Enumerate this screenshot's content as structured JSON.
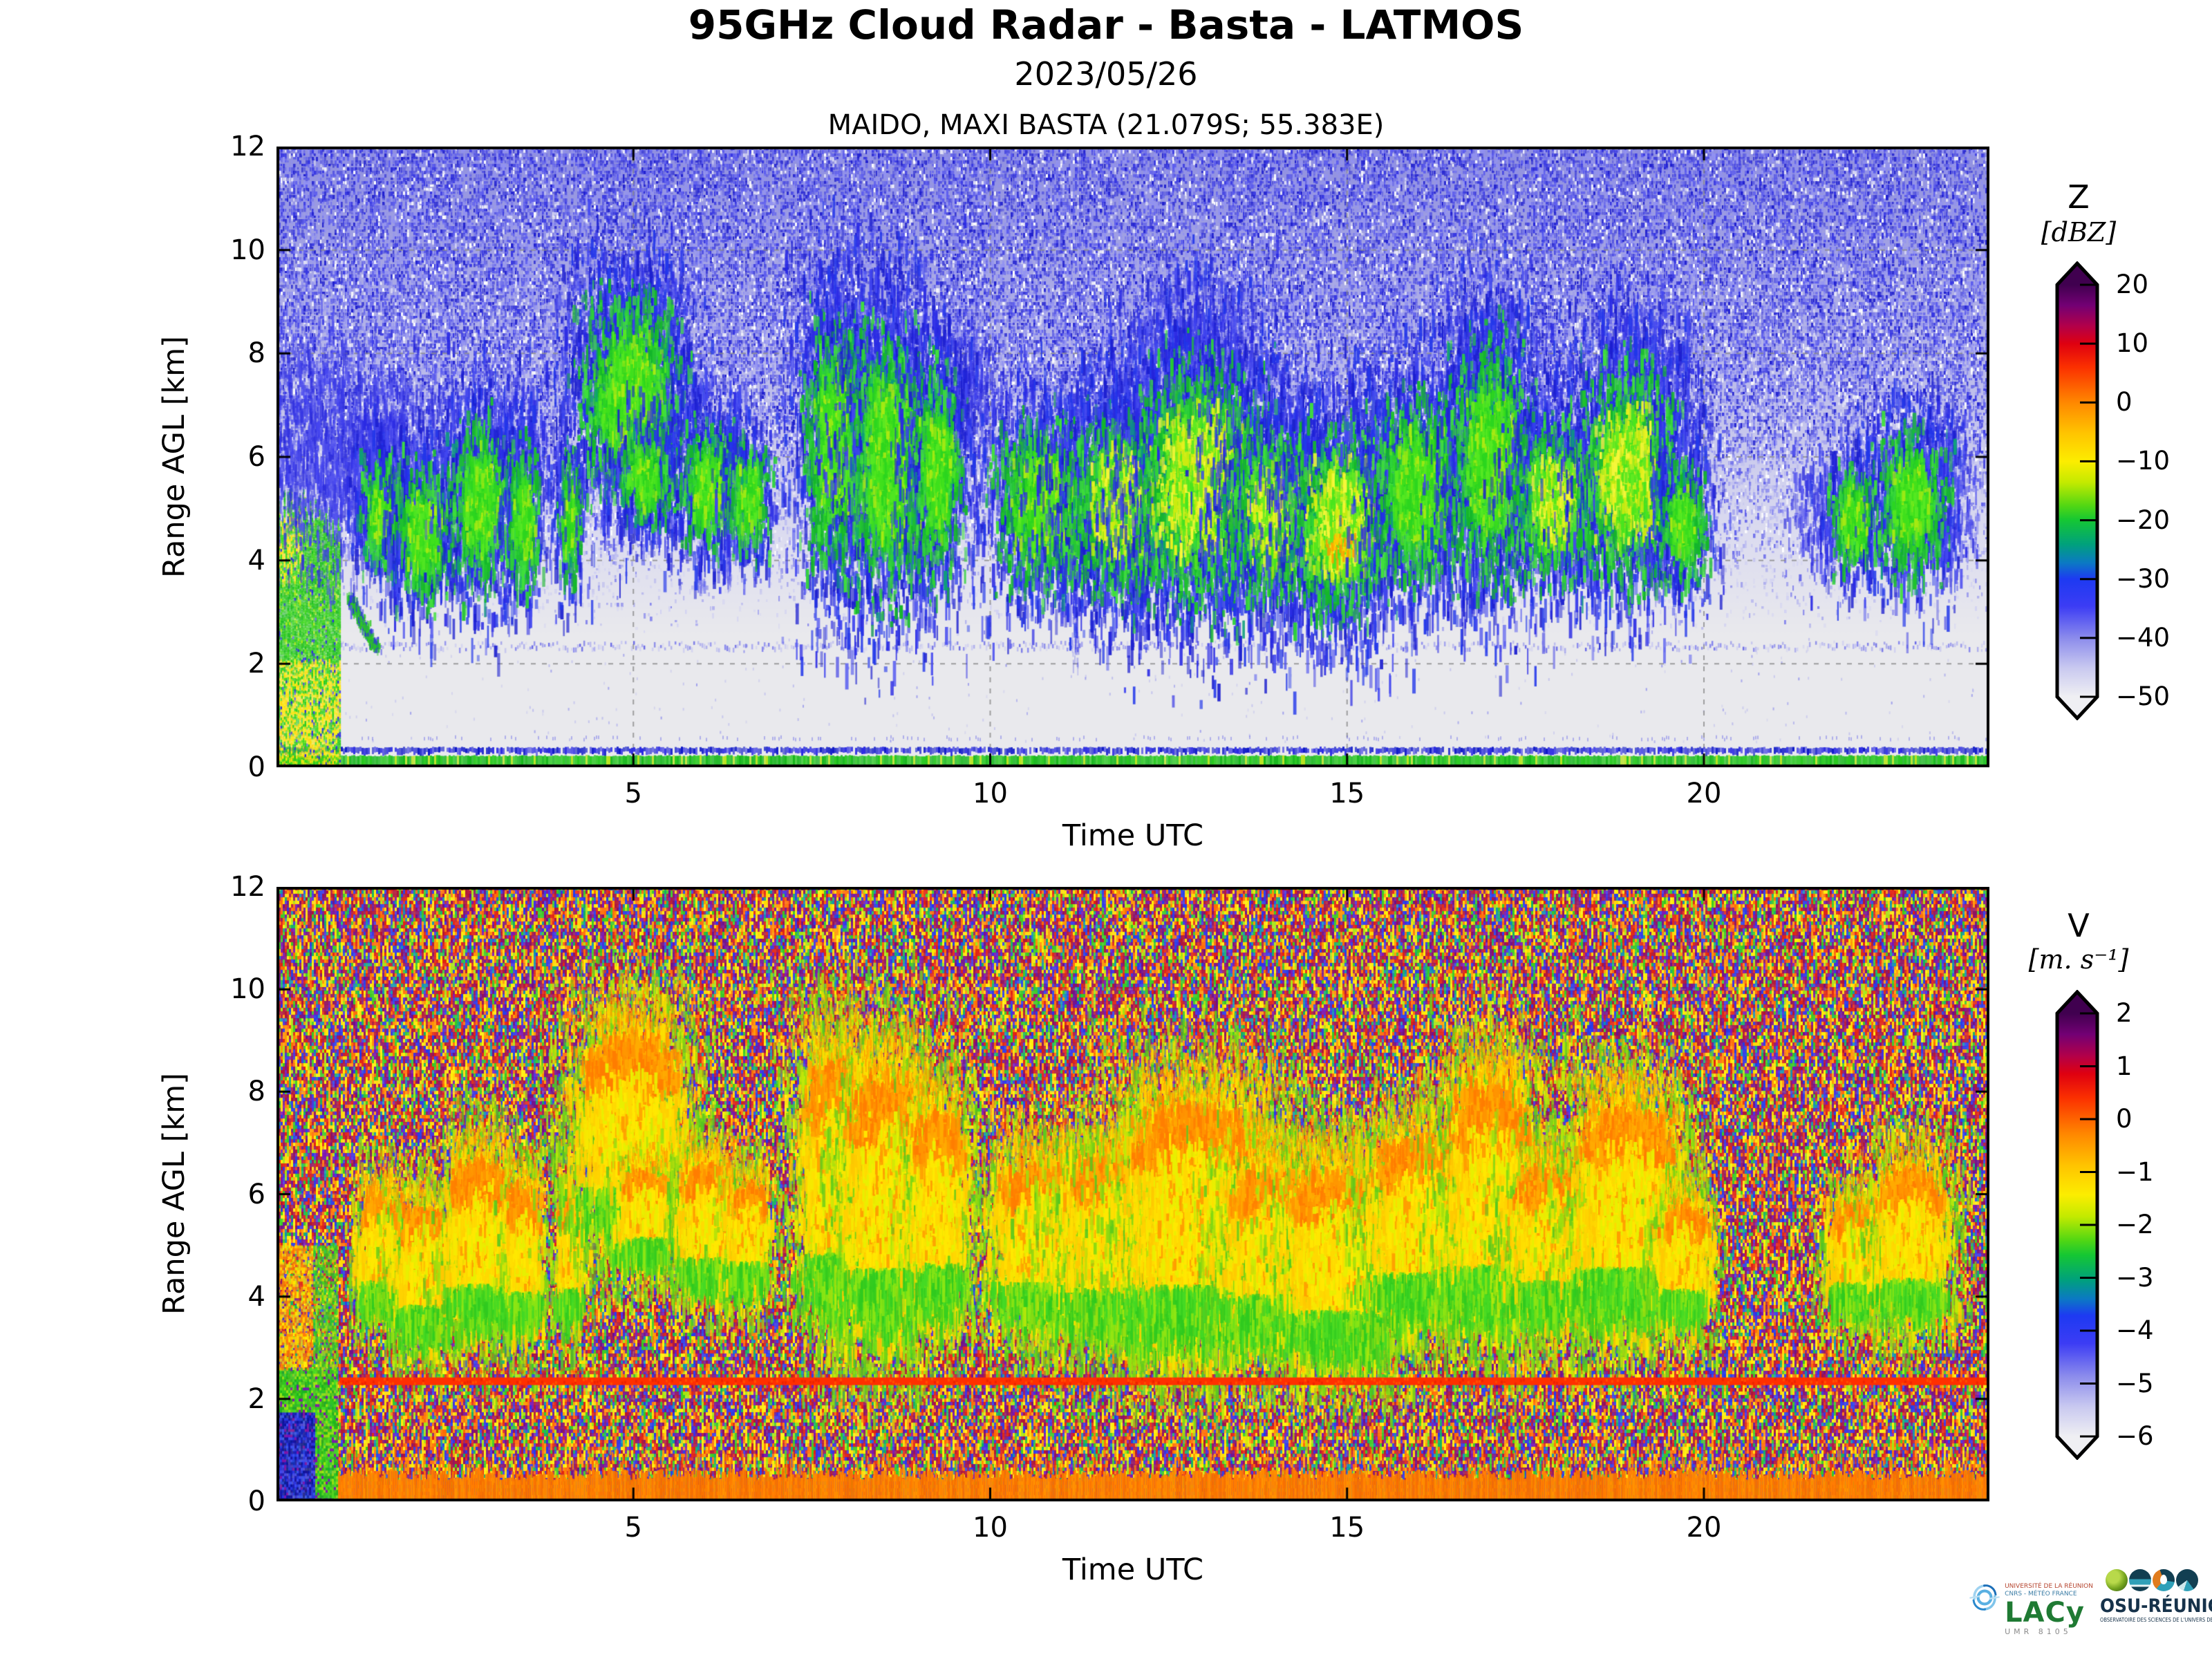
{
  "header": {
    "title": "95GHz Cloud Radar - Basta - LATMOS",
    "date": "2023/05/26",
    "site": "MAIDO, MAXI BASTA (21.079S; 55.383E)"
  },
  "axes": {
    "xlabel": "Time UTC",
    "ylabel": "Range AGL [km]",
    "xticks": [
      5,
      10,
      15,
      20
    ],
    "yticks": [
      0,
      2,
      4,
      6,
      8,
      10,
      12
    ],
    "xlim": [
      0,
      24
    ],
    "ylim": [
      0,
      12
    ]
  },
  "chart_data": [
    {
      "type": "heatmap",
      "name": "reflectivity-time-height",
      "label": "Z",
      "units": "[dBZ]",
      "xlabel": "Time UTC",
      "ylabel": "Range AGL [km]",
      "xlim": [
        0,
        24
      ],
      "ylim": [
        0,
        12
      ],
      "xticks": [
        5,
        10,
        15,
        20
      ],
      "yticks": [
        0,
        2,
        4,
        6,
        8,
        10,
        12
      ],
      "grid": "dashed gray at 2 km and 5 h intervals",
      "colorbar": {
        "label": "Z",
        "units": "[dBZ]",
        "ticks": [
          "20",
          "10",
          "0",
          "−10",
          "−20",
          "−30",
          "−40",
          "−50"
        ],
        "stops": [
          {
            "p": 0.0,
            "c": "#40004f"
          },
          {
            "p": 0.05,
            "c": "#730074"
          },
          {
            "p": 0.1,
            "c": "#b2004a"
          },
          {
            "p": 0.143,
            "c": "#df0010"
          },
          {
            "p": 0.2,
            "c": "#fb3000"
          },
          {
            "p": 0.286,
            "c": "#ff8800"
          },
          {
            "p": 0.36,
            "c": "#ffc400"
          },
          {
            "p": 0.429,
            "c": "#fced00"
          },
          {
            "p": 0.48,
            "c": "#c3ea00"
          },
          {
            "p": 0.536,
            "c": "#52d713"
          },
          {
            "p": 0.571,
            "c": "#15c733"
          },
          {
            "p": 0.63,
            "c": "#00a17c"
          },
          {
            "p": 0.675,
            "c": "#0b79c4"
          },
          {
            "p": 0.714,
            "c": "#1d3af2"
          },
          {
            "p": 0.78,
            "c": "#3c3cf4"
          },
          {
            "p": 0.857,
            "c": "#8b8bec"
          },
          {
            "p": 0.93,
            "c": "#c9c9f0"
          },
          {
            "p": 1.0,
            "c": "#efeff3"
          }
        ]
      },
      "features": {
        "noise_background": "blue speckle increasing with altitude above ~2.6 km, light gray below",
        "surface_echo": {
          "green_top_km": 0.21,
          "navy_line_km": 0.38
        },
        "clutter_speckle_line_km": 2.35,
        "precip_column": {
          "t0": 0.03,
          "t1": 0.88,
          "h_top_km": 5.2
        },
        "cloud_events": [
          {
            "t": 1.45,
            "h": 5.0,
            "rt": 0.22,
            "rh": 0.9,
            "i": 0.5,
            "c": "green"
          },
          {
            "t": 2.05,
            "h": 4.6,
            "rt": 0.3,
            "rh": 1.0,
            "i": 0.68,
            "c": "green"
          },
          {
            "t": 2.85,
            "h": 5.2,
            "rt": 0.33,
            "rh": 1.25,
            "i": 0.55,
            "c": "green"
          },
          {
            "t": 3.45,
            "h": 4.9,
            "rt": 0.18,
            "rh": 1.05,
            "i": 0.5,
            "c": "green"
          },
          {
            "t": 4.1,
            "h": 4.9,
            "rt": 0.13,
            "rh": 0.95,
            "i": 0.45,
            "c": "green"
          },
          {
            "t": 4.95,
            "h": 7.3,
            "rt": 0.52,
            "rh": 1.5,
            "i": 0.85,
            "c": "green"
          },
          {
            "t": 5.15,
            "h": 5.7,
            "rt": 0.28,
            "rh": 0.7,
            "i": 0.5,
            "c": "green"
          },
          {
            "t": 6.05,
            "h": 5.5,
            "rt": 0.3,
            "rh": 0.95,
            "i": 0.75,
            "c": "green"
          },
          {
            "t": 6.6,
            "h": 5.3,
            "rt": 0.22,
            "rh": 0.8,
            "i": 0.6,
            "c": "green"
          },
          {
            "t": 7.8,
            "h": 6.3,
            "rt": 0.33,
            "rh": 1.9,
            "i": 0.8,
            "c": "green"
          },
          {
            "t": 8.55,
            "h": 6.0,
            "rt": 0.42,
            "rh": 1.9,
            "i": 0.8,
            "c": "green"
          },
          {
            "t": 9.25,
            "h": 5.8,
            "rt": 0.28,
            "rh": 1.5,
            "i": 0.7,
            "c": "green"
          },
          {
            "t": 10.75,
            "h": 5.2,
            "rt": 0.5,
            "rh": 1.2,
            "i": 0.85,
            "c": "green"
          },
          {
            "t": 11.9,
            "h": 5.2,
            "rt": 0.62,
            "rh": 1.35,
            "i": 0.9,
            "c": "yellow"
          },
          {
            "t": 12.9,
            "h": 5.6,
            "rt": 0.7,
            "rh": 1.8,
            "i": 0.95,
            "c": "yellow"
          },
          {
            "t": 14.0,
            "h": 5.0,
            "rt": 0.52,
            "rh": 1.25,
            "i": 0.9,
            "c": "yellow"
          },
          {
            "t": 14.9,
            "h": 4.8,
            "rt": 0.55,
            "rh": 1.4,
            "i": 1.0,
            "c": "yellow"
          },
          {
            "t": 16.0,
            "h": 5.5,
            "rt": 0.48,
            "rh": 1.35,
            "i": 0.8,
            "c": "green"
          },
          {
            "t": 17.0,
            "h": 6.0,
            "rt": 0.42,
            "rh": 1.8,
            "i": 0.85,
            "c": "green"
          },
          {
            "t": 17.9,
            "h": 5.2,
            "rt": 0.42,
            "rh": 1.15,
            "i": 0.9,
            "c": "yellow"
          },
          {
            "t": 18.9,
            "h": 5.8,
            "rt": 0.5,
            "rh": 1.6,
            "i": 0.9,
            "c": "yellow"
          },
          {
            "t": 19.7,
            "h": 4.8,
            "rt": 0.26,
            "rh": 0.85,
            "i": 0.6,
            "c": "green"
          },
          {
            "t": 22.1,
            "h": 4.9,
            "rt": 0.26,
            "rh": 0.8,
            "i": 0.55,
            "c": "green"
          },
          {
            "t": 22.9,
            "h": 5.2,
            "rt": 0.36,
            "rh": 1.1,
            "i": 0.75,
            "c": "green"
          }
        ],
        "blue_fuzz": [
          {
            "t": 0.7,
            "h": 6.2,
            "rt": 0.75,
            "rh": 1.3
          },
          {
            "t": 1.6,
            "h": 6.0,
            "rt": 0.4,
            "rh": 0.9
          },
          {
            "t": 3.0,
            "h": 6.3,
            "rt": 0.4,
            "rh": 0.9
          },
          {
            "t": 5.0,
            "h": 8.3,
            "rt": 0.45,
            "rh": 0.7
          },
          {
            "t": 8.1,
            "h": 7.8,
            "rt": 0.3,
            "rh": 0.8
          },
          {
            "t": 9.7,
            "h": 7.4,
            "rt": 0.25,
            "rh": 0.7
          },
          {
            "t": 12.9,
            "h": 8.2,
            "rt": 0.5,
            "rh": 0.7
          },
          {
            "t": 16.9,
            "h": 8.2,
            "rt": 0.3,
            "rh": 0.6
          },
          {
            "t": 19.2,
            "h": 7.6,
            "rt": 0.35,
            "rh": 0.8
          },
          {
            "t": 21.6,
            "h": 5.0,
            "rt": 0.22,
            "rh": 0.6
          },
          {
            "t": 23.35,
            "h": 5.4,
            "rt": 0.28,
            "rh": 0.9
          }
        ],
        "fall_streaks": [
          {
            "t": 5.9,
            "h1": 4.4,
            "h2": 3.4
          },
          {
            "t": 6.3,
            "h1": 4.3,
            "h2": 3.6
          },
          {
            "t": 11.15,
            "h1": 4.0,
            "h2": 2.0
          },
          {
            "t": 12.1,
            "h1": 3.9,
            "h2": 3.0
          },
          {
            "t": 13.4,
            "h1": 3.8,
            "h2": 3.1
          },
          {
            "t": 16.8,
            "h1": 4.1,
            "h2": 3.3
          },
          {
            "t": 19.3,
            "h1": 4.1,
            "h2": 3.3
          }
        ]
      }
    },
    {
      "type": "heatmap",
      "name": "doppler-velocity-time-height",
      "label": "V",
      "units": "[m. s⁻¹]",
      "xlabel": "Time UTC",
      "ylabel": "Range AGL [km]",
      "xlim": [
        0,
        24
      ],
      "ylim": [
        0,
        12
      ],
      "xticks": [
        5,
        10,
        15,
        20
      ],
      "yticks": [
        0,
        2,
        4,
        6,
        8,
        10,
        12
      ],
      "colorbar": {
        "label": "V",
        "units": "[m. s⁻¹]",
        "ticks": [
          "2",
          "1",
          "0",
          "−1",
          "−2",
          "−3",
          "−4",
          "−5",
          "−6"
        ],
        "stops": [
          {
            "p": 0.0,
            "c": "#40004f"
          },
          {
            "p": 0.05,
            "c": "#730074"
          },
          {
            "p": 0.1,
            "c": "#b2004a"
          },
          {
            "p": 0.143,
            "c": "#df0010"
          },
          {
            "p": 0.2,
            "c": "#fb3000"
          },
          {
            "p": 0.286,
            "c": "#ff8800"
          },
          {
            "p": 0.36,
            "c": "#ffc400"
          },
          {
            "p": 0.429,
            "c": "#fced00"
          },
          {
            "p": 0.48,
            "c": "#c3ea00"
          },
          {
            "p": 0.536,
            "c": "#52d713"
          },
          {
            "p": 0.571,
            "c": "#15c733"
          },
          {
            "p": 0.63,
            "c": "#00a17c"
          },
          {
            "p": 0.675,
            "c": "#0b79c4"
          },
          {
            "p": 0.714,
            "c": "#1d3af2"
          },
          {
            "p": 0.78,
            "c": "#3c3cf4"
          },
          {
            "p": 0.857,
            "c": "#8b8bec"
          },
          {
            "p": 0.93,
            "c": "#c9c9f0"
          },
          {
            "p": 1.0,
            "c": "#efeff3"
          }
        ]
      },
      "features": {
        "noise_background": "full-field aliased rainbow confetti noise",
        "chimney_line": {
          "h_km": 2.36,
          "color": "#ff3000",
          "t0": 0.88
        },
        "faint_line": {
          "h_km": 2.58,
          "t0": 1.0,
          "t1": 6.8
        },
        "surface_band": {
          "h_top_km": 0.52,
          "color": "#ff7d00",
          "t0": 0.86
        },
        "column": {
          "t0": 0.02,
          "t1": 0.86,
          "blue_top_km": 1.75,
          "green_top_km": 5.0
        },
        "cloud_events_shared_with": "chart_data[0].features.cloud_events"
      }
    }
  ],
  "logos": {
    "lacy": {
      "name": "LACy",
      "line1": "UNIVERSITÉ DE LA RÉUNION",
      "line2": "CNRS - MÉTÉO FRANCE",
      "umr": "UMR 8105"
    },
    "osu": {
      "name": "OSU-RÉUNION",
      "tagline": "OBSERVATOIRE DES SCIENCES DE L'UNIVERS DE LA RÉUNION"
    }
  }
}
